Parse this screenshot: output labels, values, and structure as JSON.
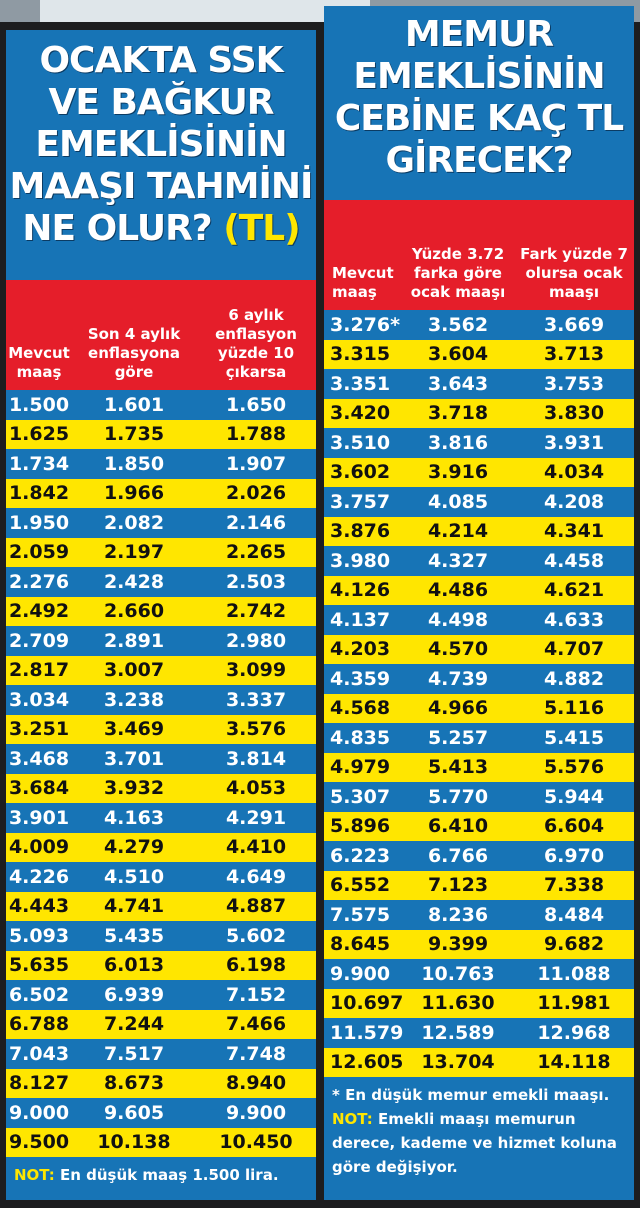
{
  "left": {
    "title_lines": [
      "OCAKTA SSK",
      "VE BAĞKUR",
      "EMEKLİSİNİN",
      "MAAŞI TAHMİNİ",
      "NE OLUR?"
    ],
    "title_tl": "(TL)",
    "headers": [
      "Mevcut maaş",
      "Son 4 aylık enflasyona göre",
      "6 aylık enflasyon yüzde 10 çıkarsa"
    ],
    "rows": [
      [
        "1.500",
        "1.601",
        "1.650"
      ],
      [
        "1.625",
        "1.735",
        "1.788"
      ],
      [
        "1.734",
        "1.850",
        "1.907"
      ],
      [
        "1.842",
        "1.966",
        "2.026"
      ],
      [
        "1.950",
        "2.082",
        "2.146"
      ],
      [
        "2.059",
        "2.197",
        "2.265"
      ],
      [
        "2.276",
        "2.428",
        "2.503"
      ],
      [
        "2.492",
        "2.660",
        "2.742"
      ],
      [
        "2.709",
        "2.891",
        "2.980"
      ],
      [
        "2.817",
        "3.007",
        "3.099"
      ],
      [
        "3.034",
        "3.238",
        "3.337"
      ],
      [
        "3.251",
        "3.469",
        "3.576"
      ],
      [
        "3.468",
        "3.701",
        "3.814"
      ],
      [
        "3.684",
        "3.932",
        "4.053"
      ],
      [
        "3.901",
        "4.163",
        "4.291"
      ],
      [
        "4.009",
        "4.279",
        "4.410"
      ],
      [
        "4.226",
        "4.510",
        "4.649"
      ],
      [
        "4.443",
        "4.741",
        "4.887"
      ],
      [
        "5.093",
        "5.435",
        "5.602"
      ],
      [
        "5.635",
        "6.013",
        "6.198"
      ],
      [
        "6.502",
        "6.939",
        "7.152"
      ],
      [
        "6.788",
        "7.244",
        "7.466"
      ],
      [
        "7.043",
        "7.517",
        "7.748"
      ],
      [
        "8.127",
        "8.673",
        "8.940"
      ],
      [
        "9.000",
        "9.605",
        "9.900"
      ],
      [
        "9.500",
        "10.138",
        "10.450"
      ]
    ],
    "note_label": "NOT:",
    "note_text": "En düşük maaş 1.500 lira."
  },
  "right": {
    "title_lines": [
      "MEMUR",
      "EMEKLİSİNİN",
      "CEBİNE KAÇ TL",
      "GİRECEK?"
    ],
    "headers": [
      "Mevcut maaş",
      "Yüzde 3.72 farka göre ocak maaşı",
      "Fark yüzde 7 olursa ocak maaşı"
    ],
    "rows": [
      [
        "3.276*",
        "3.562",
        "3.669"
      ],
      [
        "3.315",
        "3.604",
        "3.713"
      ],
      [
        "3.351",
        "3.643",
        "3.753"
      ],
      [
        "3.420",
        "3.718",
        "3.830"
      ],
      [
        "3.510",
        "3.816",
        "3.931"
      ],
      [
        "3.602",
        "3.916",
        "4.034"
      ],
      [
        "3.757",
        "4.085",
        "4.208"
      ],
      [
        "3.876",
        "4.214",
        "4.341"
      ],
      [
        "3.980",
        "4.327",
        "4.458"
      ],
      [
        "4.126",
        "4.486",
        "4.621"
      ],
      [
        "4.137",
        "4.498",
        "4.633"
      ],
      [
        "4.203",
        "4.570",
        "4.707"
      ],
      [
        "4.359",
        "4.739",
        "4.882"
      ],
      [
        "4.568",
        "4.966",
        "5.116"
      ],
      [
        "4.835",
        "5.257",
        "5.415"
      ],
      [
        "4.979",
        "5.413",
        "5.576"
      ],
      [
        "5.307",
        "5.770",
        "5.944"
      ],
      [
        "5.896",
        "6.410",
        "6.604"
      ],
      [
        "6.223",
        "6.766",
        "6.970"
      ],
      [
        "6.552",
        "7.123",
        "7.338"
      ],
      [
        "7.575",
        "8.236",
        "8.484"
      ],
      [
        "8.645",
        "9.399",
        "9.682"
      ],
      [
        "9.900",
        "10.763",
        "11.088"
      ],
      [
        "10.697",
        "11.630",
        "11.981"
      ],
      [
        "11.579",
        "12.589",
        "12.968"
      ],
      [
        "12.605",
        "13.704",
        "14.118"
      ]
    ],
    "footnote": "* En düşük memur emekli maaşı.",
    "note_label": "NOT:",
    "note_text": "Emekli maaşı memurun derece, kademe ve hizmet koluna göre değişiyor."
  },
  "colors": {
    "blue": "#1774b6",
    "yellow": "#ffe600",
    "red": "#e51e2a"
  }
}
